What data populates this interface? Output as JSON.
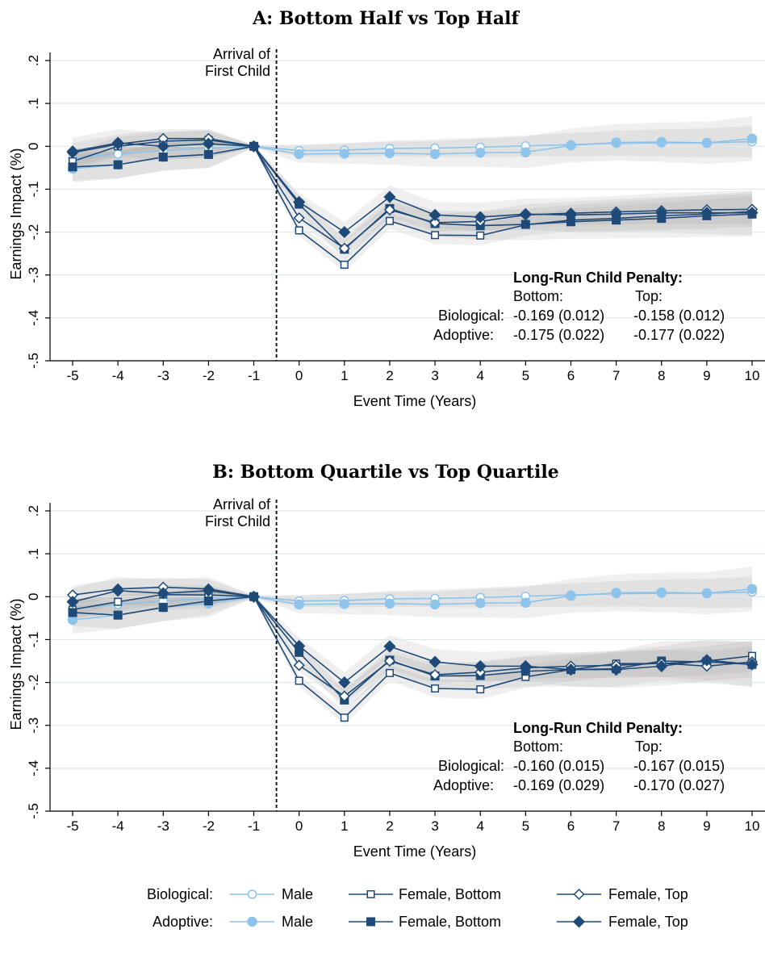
{
  "legend": {
    "row_labels": [
      "Biological:",
      "Adoptive:"
    ],
    "entries": [
      "Male",
      "Female, Bottom",
      "Female, Top"
    ]
  },
  "colors": {
    "male": "#8EC3EA",
    "female": "#1F4A78",
    "band": "#9a9a9a",
    "grid": "#dde8ec"
  },
  "chart_data": [
    {
      "type": "line",
      "title": "A: Bottom Half vs Top Half",
      "xlabel": "Event Time (Years)",
      "ylabel": "Earnings Impact (%)",
      "x": [
        -5,
        -4,
        -3,
        -2,
        -1,
        0,
        1,
        2,
        3,
        4,
        5,
        6,
        7,
        8,
        9,
        10
      ],
      "xticks": [
        "-5",
        "-4",
        "-3",
        "-2",
        "-1",
        "0",
        "1",
        "2",
        "3",
        "4",
        "5",
        "6",
        "7",
        "8",
        "9",
        "10"
      ],
      "yticks": [
        ".2",
        ".1",
        "0",
        "-.1",
        "-.2",
        "-.3",
        "-.4",
        "-.5"
      ],
      "ylim": [
        -0.5,
        0.2
      ],
      "vline_label": [
        "Arrival of",
        "First Child"
      ],
      "series": [
        {
          "group": "Biological",
          "name": "Male",
          "marker": "circle-open",
          "color": "#8EC3EA",
          "values": [
            -0.028,
            -0.018,
            -0.01,
            -0.004,
            0,
            -0.01,
            -0.009,
            -0.005,
            -0.004,
            -0.002,
            0.001,
            0.004,
            0.007,
            0.008,
            0.008,
            0.011
          ]
        },
        {
          "group": "Adoptive",
          "name": "Male",
          "marker": "circle-filled",
          "color": "#8EC3EA",
          "values": [
            -0.052,
            -0.043,
            -0.025,
            -0.018,
            0,
            -0.018,
            -0.017,
            -0.016,
            -0.018,
            -0.015,
            -0.014,
            0.002,
            0.009,
            0.01,
            0.008,
            0.018
          ]
        },
        {
          "group": "Biological",
          "name": "Female, Bottom",
          "marker": "square-open",
          "color": "#1F4A78",
          "values": [
            -0.035,
            0.0,
            0.012,
            0.015,
            0,
            -0.196,
            -0.276,
            -0.174,
            -0.207,
            -0.208,
            -0.183,
            -0.172,
            -0.168,
            -0.162,
            -0.158,
            -0.152
          ]
        },
        {
          "group": "Adoptive",
          "name": "Female, Bottom",
          "marker": "square-filled",
          "color": "#1F4A78",
          "values": [
            -0.048,
            -0.043,
            -0.025,
            -0.019,
            0,
            -0.135,
            -0.24,
            -0.145,
            -0.18,
            -0.185,
            -0.182,
            -0.176,
            -0.172,
            -0.168,
            -0.162,
            -0.158
          ]
        },
        {
          "group": "Biological",
          "name": "Female, Top",
          "marker": "diamond-open",
          "color": "#1F4A78",
          "values": [
            -0.015,
            0.005,
            0.018,
            0.018,
            0,
            -0.167,
            -0.238,
            -0.148,
            -0.178,
            -0.175,
            -0.16,
            -0.156,
            -0.153,
            -0.15,
            -0.148,
            -0.147
          ]
        },
        {
          "group": "Adoptive",
          "name": "Female, Top",
          "marker": "diamond-filled",
          "color": "#1F4A78",
          "values": [
            -0.012,
            0.008,
            0.0,
            0.006,
            0,
            -0.13,
            -0.2,
            -0.118,
            -0.16,
            -0.165,
            -0.158,
            -0.16,
            -0.158,
            -0.155,
            -0.155,
            -0.155
          ]
        }
      ],
      "penalty": {
        "heading": "Long-Run Child Penalty:",
        "cols": [
          "Bottom:",
          "Top:"
        ],
        "rows": [
          {
            "label": "Biological:",
            "bottom": "-0.169 (0.012)",
            "top": "-0.158 (0.012)"
          },
          {
            "label": "Adoptive:",
            "bottom": "-0.175 (0.022)",
            "top": "-0.177 (0.022)"
          }
        ]
      }
    },
    {
      "type": "line",
      "title": "B: Bottom Quartile vs Top Quartile",
      "xlabel": "Event Time (Years)",
      "ylabel": "Earnings Impact (%)",
      "x": [
        -5,
        -4,
        -3,
        -2,
        -1,
        0,
        1,
        2,
        3,
        4,
        5,
        6,
        7,
        8,
        9,
        10
      ],
      "xticks": [
        "-5",
        "-4",
        "-3",
        "-2",
        "-1",
        "0",
        "1",
        "2",
        "3",
        "4",
        "5",
        "6",
        "7",
        "8",
        "9",
        "10"
      ],
      "yticks": [
        ".2",
        ".1",
        "0",
        "-.1",
        "-.2",
        "-.3",
        "-.4",
        "-.5"
      ],
      "ylim": [
        -0.5,
        0.2
      ],
      "vline_label": [
        "Arrival of",
        "First Child"
      ],
      "series": [
        {
          "group": "Biological",
          "name": "Male",
          "marker": "circle-open",
          "color": "#8EC3EA",
          "values": [
            -0.028,
            -0.018,
            -0.01,
            -0.004,
            0,
            -0.01,
            -0.009,
            -0.005,
            -0.004,
            -0.002,
            0.001,
            0.004,
            0.007,
            0.008,
            0.008,
            0.011
          ]
        },
        {
          "group": "Adoptive",
          "name": "Male",
          "marker": "circle-filled",
          "color": "#8EC3EA",
          "values": [
            -0.054,
            -0.043,
            -0.025,
            -0.016,
            0,
            -0.018,
            -0.017,
            -0.016,
            -0.018,
            -0.015,
            -0.014,
            0.002,
            0.009,
            0.01,
            0.008,
            0.018
          ]
        },
        {
          "group": "Biological",
          "name": "Female, Bottom",
          "marker": "square-open",
          "color": "#1F4A78",
          "values": [
            -0.03,
            -0.012,
            0.005,
            0.004,
            0,
            -0.196,
            -0.282,
            -0.178,
            -0.214,
            -0.216,
            -0.187,
            -0.17,
            -0.156,
            -0.156,
            -0.15,
            -0.138
          ]
        },
        {
          "group": "Adoptive",
          "name": "Female, Bottom",
          "marker": "square-filled",
          "color": "#1F4A78",
          "values": [
            -0.037,
            -0.043,
            -0.025,
            -0.01,
            0,
            -0.13,
            -0.241,
            -0.148,
            -0.185,
            -0.184,
            -0.174,
            -0.17,
            -0.168,
            -0.15,
            -0.152,
            -0.158
          ]
        },
        {
          "group": "Biological",
          "name": "Female, Top",
          "marker": "diamond-open",
          "color": "#1F4A78",
          "values": [
            0.004,
            0.018,
            0.022,
            0.018,
            0,
            -0.16,
            -0.232,
            -0.15,
            -0.182,
            -0.176,
            -0.166,
            -0.162,
            -0.16,
            -0.155,
            -0.162,
            -0.152
          ]
        },
        {
          "group": "Adoptive",
          "name": "Female, Top",
          "marker": "diamond-filled",
          "color": "#1F4A78",
          "values": [
            -0.012,
            0.014,
            0.008,
            0.014,
            0,
            -0.115,
            -0.2,
            -0.116,
            -0.152,
            -0.162,
            -0.162,
            -0.17,
            -0.17,
            -0.162,
            -0.148,
            -0.158
          ]
        }
      ],
      "penalty": {
        "heading": "Long-Run Child Penalty:",
        "cols": [
          "Bottom:",
          "Top:"
        ],
        "rows": [
          {
            "label": "Biological:",
            "bottom": "-0.160 (0.015)",
            "top": "-0.167 (0.015)"
          },
          {
            "label": "Adoptive:",
            "bottom": "-0.169 (0.029)",
            "top": "-0.170 (0.027)"
          }
        ]
      }
    }
  ]
}
